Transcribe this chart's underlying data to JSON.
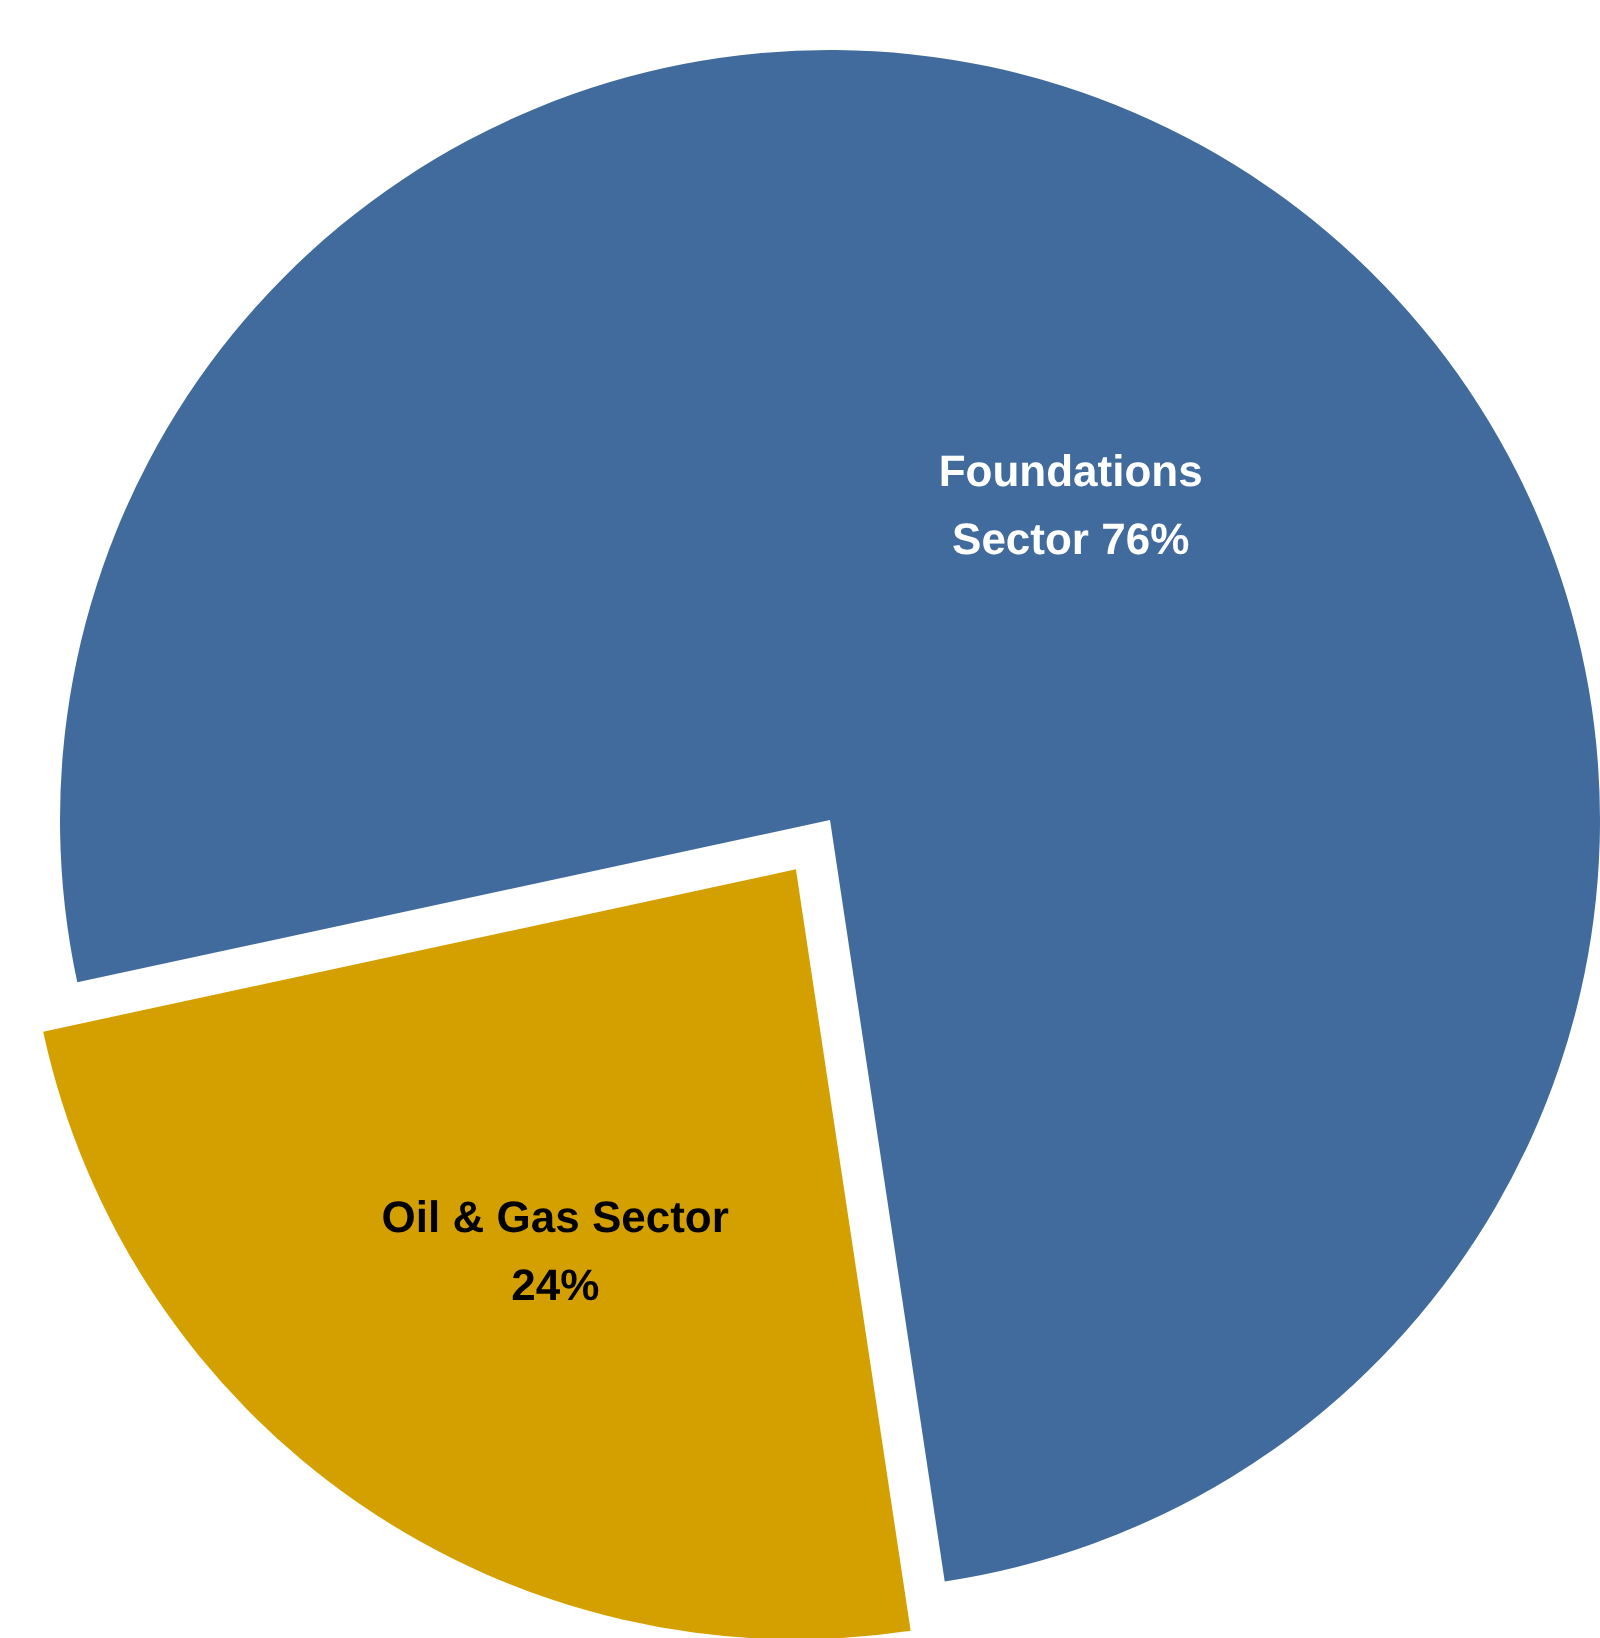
{
  "chart_data": {
    "type": "pie",
    "categories": [
      "Foundations Sector",
      "Oil & Gas Sector"
    ],
    "values": [
      76,
      24
    ],
    "colors": [
      "#416b9c",
      "#d4a000"
    ],
    "value_labels": [
      "76%",
      "24%"
    ]
  }
}
